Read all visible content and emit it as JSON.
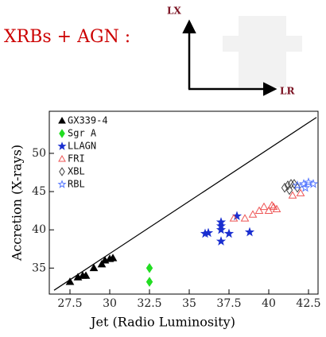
{
  "header": {
    "title": "XRBs + AGN :",
    "arrow_y_label": "LX",
    "arrow_x_label": "LR"
  },
  "chart_data": {
    "type": "scatter",
    "x_label": "Jet (Radio Luminosity)",
    "y_label": "Accretion (X-rays)",
    "xlim": [
      26.2,
      43.1
    ],
    "ylim": [
      31.6,
      55.5
    ],
    "xticks": [
      27.5,
      30,
      32.5,
      35,
      37.5,
      40,
      42.5
    ],
    "yticks": [
      35,
      40,
      45,
      50
    ],
    "fit_line": {
      "x": [
        26.5,
        43
      ],
      "y": [
        32.1,
        54.7
      ]
    },
    "series": [
      {
        "name": "GX339-4",
        "color": "#000000",
        "marker": "triangle",
        "filled": true,
        "x": [
          27.5,
          28,
          28.3,
          28.5,
          29,
          29.5,
          29.7,
          30,
          30.2
        ],
        "y": [
          33.2,
          33.8,
          34,
          34,
          35,
          35.5,
          36,
          36.2,
          36.3
        ]
      },
      {
        "name": "Sgr A",
        "color": "#22dd22",
        "marker": "diamond",
        "filled": true,
        "x": [
          32.5,
          32.5
        ],
        "y": [
          35,
          33.2
        ]
      },
      {
        "name": "LLAGN",
        "color": "#1a2fd0",
        "marker": "star",
        "filled": true,
        "x": [
          36,
          36.2,
          37,
          37,
          37,
          37,
          37.5,
          38,
          38.8
        ],
        "y": [
          39.5,
          39.6,
          40,
          40.5,
          41,
          38.5,
          39.5,
          41.8,
          39.7
        ]
      },
      {
        "name": "FRI",
        "color": "#ee5555",
        "marker": "triangle",
        "filled": false,
        "x": [
          37.8,
          38.5,
          39,
          39.4,
          39.7,
          40,
          40.3,
          40.5,
          40.2,
          41.5,
          42
        ],
        "y": [
          41.5,
          41.5,
          42,
          42.5,
          43,
          42.5,
          43,
          42.7,
          43.2,
          44.5,
          44.8
        ]
      },
      {
        "name": "XBL",
        "color": "#444444",
        "marker": "diamond",
        "filled": false,
        "x": [
          41,
          41.2,
          41.4,
          41.6,
          41.8,
          41.3
        ],
        "y": [
          45.5,
          45.8,
          46,
          46,
          45.5,
          45.2
        ]
      },
      {
        "name": "RBL",
        "color": "#5577ff",
        "marker": "star",
        "filled": false,
        "x": [
          41.8,
          42.2,
          42.5,
          42.8,
          42.3
        ],
        "y": [
          45.8,
          46,
          46.2,
          46,
          45.5
        ]
      }
    ]
  }
}
